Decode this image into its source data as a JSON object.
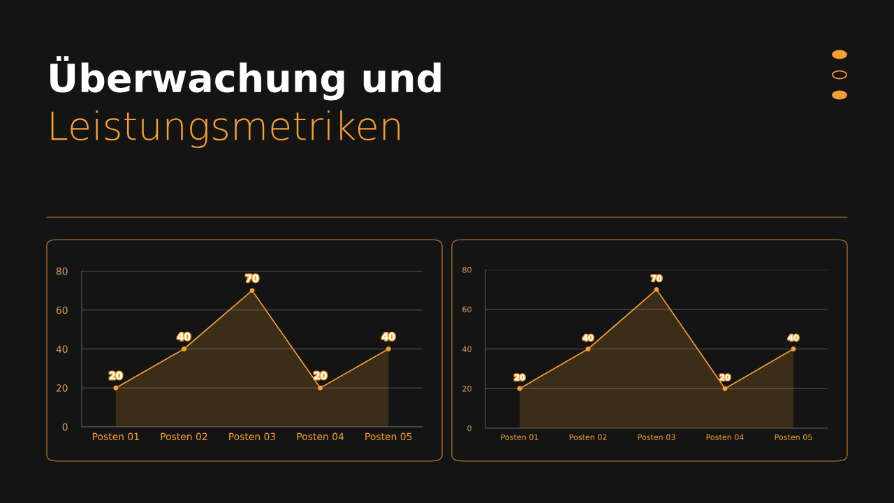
{
  "chart_data": [
    {
      "type": "area",
      "title": "Überwachung und",
      "subtitle": "Leistungsmetriken",
      "categories": [
        "Posten 01",
        "Posten 02",
        "Posten 03",
        "Posten 04",
        "Posten 05"
      ],
      "values": [
        20,
        40,
        70,
        20,
        40
      ],
      "color": "#f5a030",
      "ylim": [
        0,
        80
      ],
      "yticks": [
        0,
        20,
        40,
        60,
        80
      ],
      "grid": "y",
      "marker": "circle",
      "data_labels": true,
      "legend": false
    },
    {
      "type": "area",
      "categories": [
        "Posten 01",
        "Posten 02",
        "Posten 03",
        "Posten 04",
        "Posten 05"
      ],
      "values": [
        20,
        40,
        70,
        20,
        40
      ],
      "color": "#f5a030",
      "ylim": [
        0,
        80
      ],
      "yticks": [
        0,
        20,
        40,
        60,
        80
      ],
      "grid": "y",
      "marker": "circle",
      "data_labels": true,
      "legend": false
    }
  ]
}
